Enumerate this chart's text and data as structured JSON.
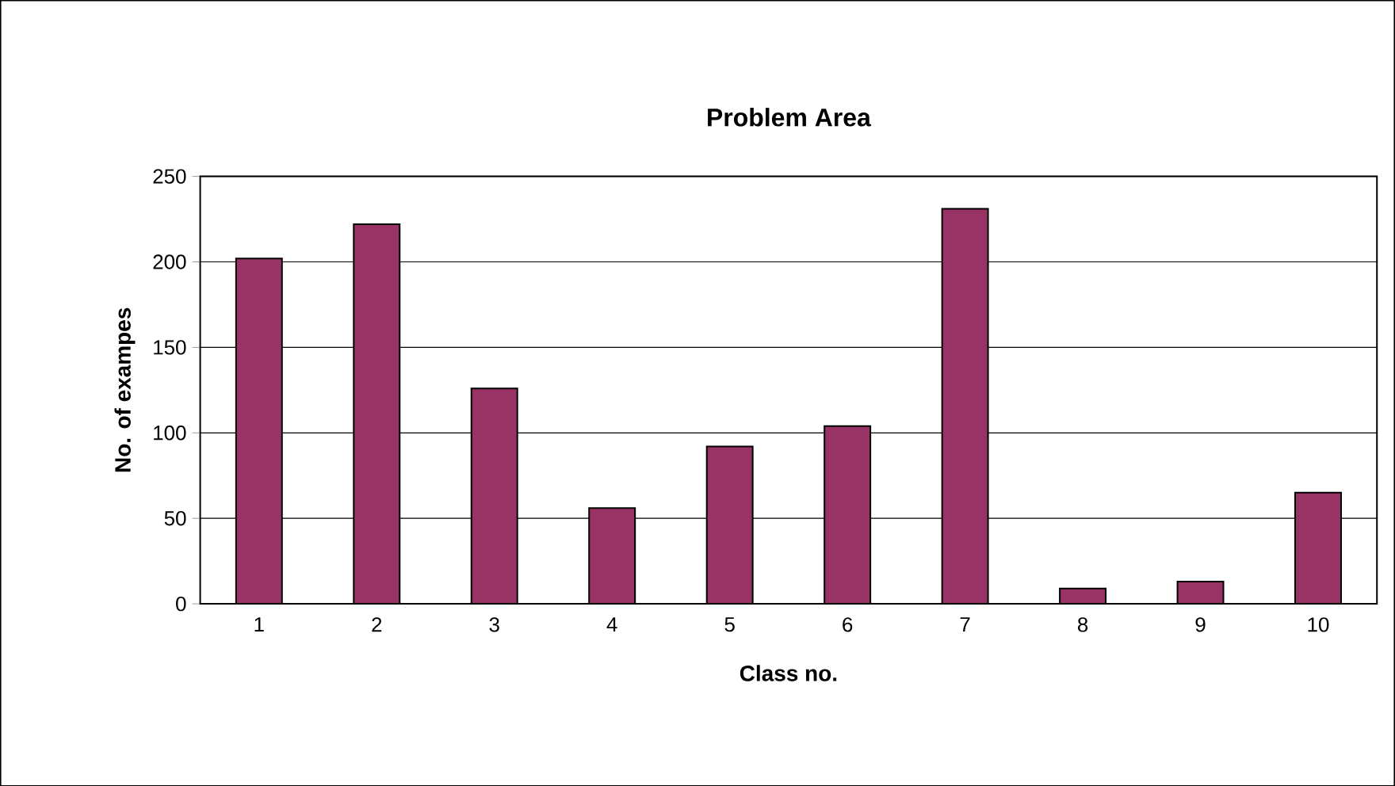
{
  "chart_data": {
    "type": "bar",
    "title": "Problem Area",
    "xlabel": "Class no.",
    "ylabel": "No. of exampes",
    "categories": [
      "1",
      "2",
      "3",
      "4",
      "5",
      "6",
      "7",
      "8",
      "9",
      "10"
    ],
    "values": [
      202,
      222,
      126,
      56,
      92,
      104,
      231,
      9,
      13,
      65
    ],
    "color": "#993366",
    "ylim": [
      0,
      250
    ],
    "yticks": [
      0,
      50,
      100,
      150,
      200,
      250
    ],
    "grid": "y"
  }
}
